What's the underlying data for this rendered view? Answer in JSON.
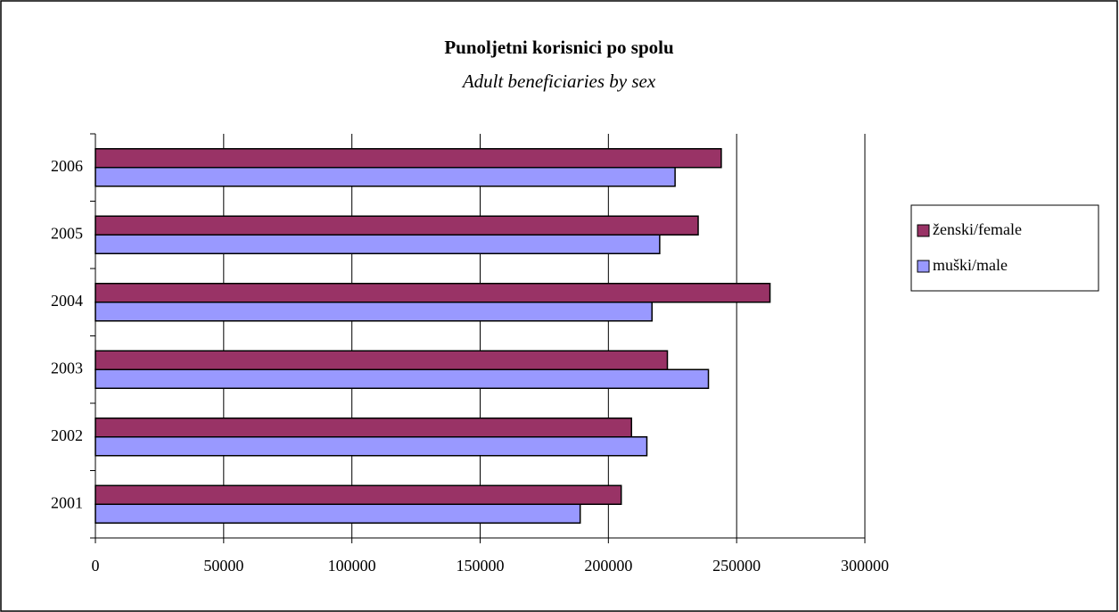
{
  "chart_data": {
    "type": "hbar",
    "title": "Punoljetni korisnici po spolu",
    "subtitle": "Adult beneficiaries by sex",
    "categories": [
      "2001",
      "2002",
      "2003",
      "2004",
      "2005",
      "2006"
    ],
    "series": [
      {
        "name": "ženski/female",
        "color": "#993366",
        "values": [
          205000,
          209000,
          223000,
          263000,
          235000,
          244000
        ]
      },
      {
        "name": "muški/male",
        "color": "#9999ff",
        "values": [
          189000,
          215000,
          239000,
          217000,
          220000,
          226000
        ]
      }
    ],
    "xlim": [
      0,
      300000
    ],
    "xticks": [
      0,
      50000,
      100000,
      150000,
      200000,
      250000,
      300000
    ],
    "grid": true,
    "legend": "right"
  }
}
